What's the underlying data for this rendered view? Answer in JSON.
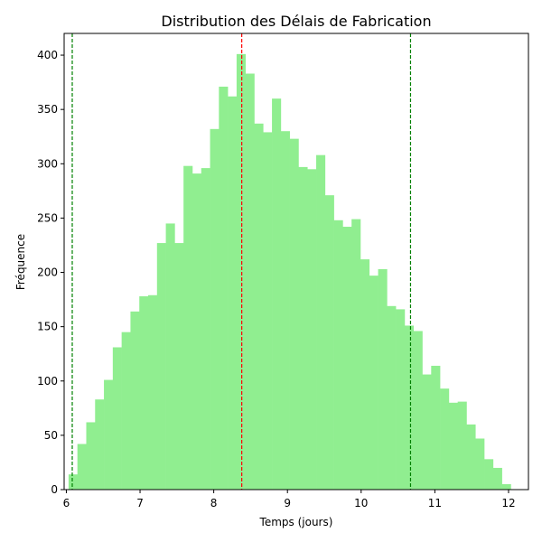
{
  "chart_data": {
    "type": "bar",
    "title": "Distribution des Délais de Fabrication",
    "xlabel": "Temps (jours)",
    "ylabel": "Fréquence",
    "xlim": [
      5.97,
      12.27
    ],
    "ylim": [
      0,
      420
    ],
    "xticks": [
      6,
      7,
      8,
      9,
      10,
      11,
      12
    ],
    "yticks": [
      0,
      50,
      100,
      150,
      200,
      250,
      300,
      350,
      400
    ],
    "bin_start": 6.03,
    "bin_width": 0.12,
    "values": [
      14,
      42,
      62,
      83,
      101,
      131,
      145,
      164,
      178,
      179,
      227,
      245,
      227,
      298,
      291,
      296,
      332,
      371,
      362,
      401,
      383,
      337,
      329,
      360,
      330,
      323,
      297,
      295,
      308,
      271,
      248,
      242,
      249,
      212,
      197,
      203,
      169,
      166,
      151,
      146,
      106,
      114,
      93,
      80,
      81,
      60,
      47,
      28,
      20,
      5
    ],
    "vlines": [
      {
        "x": 6.08,
        "color": "#008000"
      },
      {
        "x": 8.38,
        "color": "#ff0000"
      },
      {
        "x": 10.67,
        "color": "#008000"
      }
    ],
    "bar_color": "#90ee90",
    "grid": false,
    "legend": false
  }
}
